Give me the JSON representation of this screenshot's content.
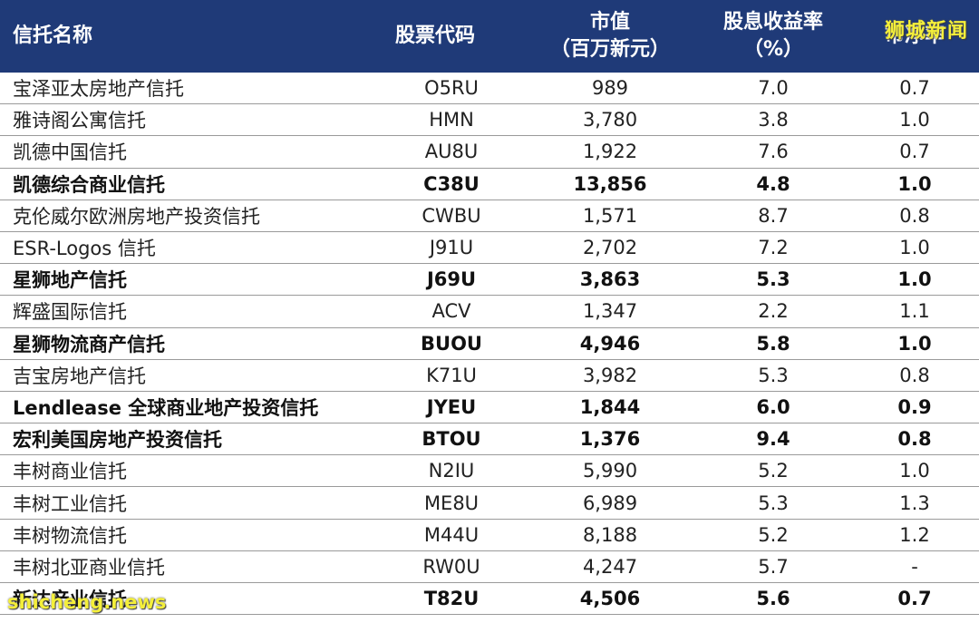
{
  "headers": {
    "name": "信托名称",
    "code": "股票代码",
    "cap_line1": "市值",
    "cap_line2": "（百万新元）",
    "yield_line1": "股息收益率",
    "yield_line2": "（%）",
    "pb": "市净率"
  },
  "rows": [
    {
      "name": "宝泽亚太房地产信托",
      "code": "O5RU",
      "cap": "989",
      "yield": "7.0",
      "pb": "0.7",
      "bold": false
    },
    {
      "name": "雅诗阁公寓信托",
      "code": "HMN",
      "cap": "3,780",
      "yield": "3.8",
      "pb": "1.0",
      "bold": false
    },
    {
      "name": "凯德中国信托",
      "code": "AU8U",
      "cap": "1,922",
      "yield": "7.6",
      "pb": "0.7",
      "bold": false
    },
    {
      "name": "凯德综合商业信托",
      "code": "C38U",
      "cap": "13,856",
      "yield": "4.8",
      "pb": "1.0",
      "bold": true
    },
    {
      "name": "克伦威尔欧洲房地产投资信托",
      "code": "CWBU",
      "cap": "1,571",
      "yield": "8.7",
      "pb": "0.8",
      "bold": false
    },
    {
      "name": "ESR-Logos 信托",
      "code": "J91U",
      "cap": "2,702",
      "yield": "7.2",
      "pb": "1.0",
      "bold": false
    },
    {
      "name": "星狮地产信托",
      "code": "J69U",
      "cap": "3,863",
      "yield": "5.3",
      "pb": "1.0",
      "bold": true
    },
    {
      "name": "辉盛国际信托",
      "code": "ACV",
      "cap": "1,347",
      "yield": "2.2",
      "pb": "1.1",
      "bold": false
    },
    {
      "name": "星狮物流商产信托",
      "code": "BUOU",
      "cap": "4,946",
      "yield": "5.8",
      "pb": "1.0",
      "bold": true
    },
    {
      "name": "吉宝房地产信托",
      "code": "K71U",
      "cap": "3,982",
      "yield": "5.3",
      "pb": "0.8",
      "bold": false
    },
    {
      "name": "Lendlease 全球商业地产投资信托",
      "code": "JYEU",
      "cap": "1,844",
      "yield": "6.0",
      "pb": "0.9",
      "bold": true
    },
    {
      "name": "宏利美国房地产投资信托",
      "code": "BTOU",
      "cap": "1,376",
      "yield": "9.4",
      "pb": "0.8",
      "bold": true
    },
    {
      "name": "丰树商业信托",
      "code": "N2IU",
      "cap": "5,990",
      "yield": "5.2",
      "pb": "1.0",
      "bold": false
    },
    {
      "name": "丰树工业信托",
      "code": "ME8U",
      "cap": "6,989",
      "yield": "5.3",
      "pb": "1.3",
      "bold": false
    },
    {
      "name": "丰树物流信托",
      "code": "M44U",
      "cap": "8,188",
      "yield": "5.2",
      "pb": "1.2",
      "bold": false
    },
    {
      "name": "丰树北亚商业信托",
      "code": "RW0U",
      "cap": "4,247",
      "yield": "5.7",
      "pb": "-",
      "bold": false
    },
    {
      "name": "新达产业信托",
      "code": "T82U",
      "cap": "4,506",
      "yield": "5.6",
      "pb": "0.7",
      "bold": true
    }
  ],
  "watermarks": {
    "top": "狮城新闻",
    "bottom": "shicheng.news"
  }
}
